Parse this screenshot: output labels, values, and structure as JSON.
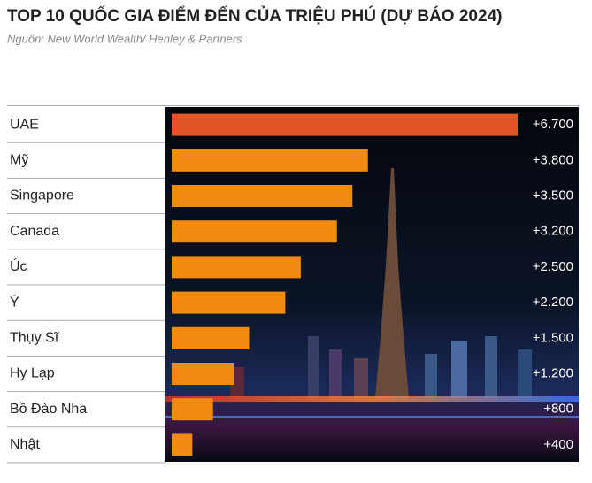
{
  "chart_data": {
    "type": "hbar",
    "title": "TOP 10 QUỐC GIA ĐIỂM ĐẾN CỦA TRIỆU PHÚ (DỰ BÁO 2024)",
    "subtitle": "Nguồn: New World Wealth/ Henley & Partners",
    "categories": [
      "UAE",
      "Mỹ",
      "Singapore",
      "Canada",
      "Úc",
      "Ý",
      "Thụy Sĩ",
      "Hy Lạp",
      "Bồ Đào Nha",
      "Nhật"
    ],
    "values": [
      6700,
      3800,
      3500,
      3200,
      2500,
      2200,
      1500,
      1200,
      800,
      400
    ],
    "value_labels": [
      "+6.700",
      "+3.800",
      "+3.500",
      "+3.200",
      "+2.500",
      "+2.200",
      "+1.500",
      "+1.200",
      "+800",
      "+400"
    ],
    "colors": [
      "#e25524",
      "#f08a10",
      "#f08a10",
      "#f08a10",
      "#f08a10",
      "#f08a10",
      "#f08a10",
      "#f08a10",
      "#f08a10",
      "#f08a10"
    ]
  }
}
